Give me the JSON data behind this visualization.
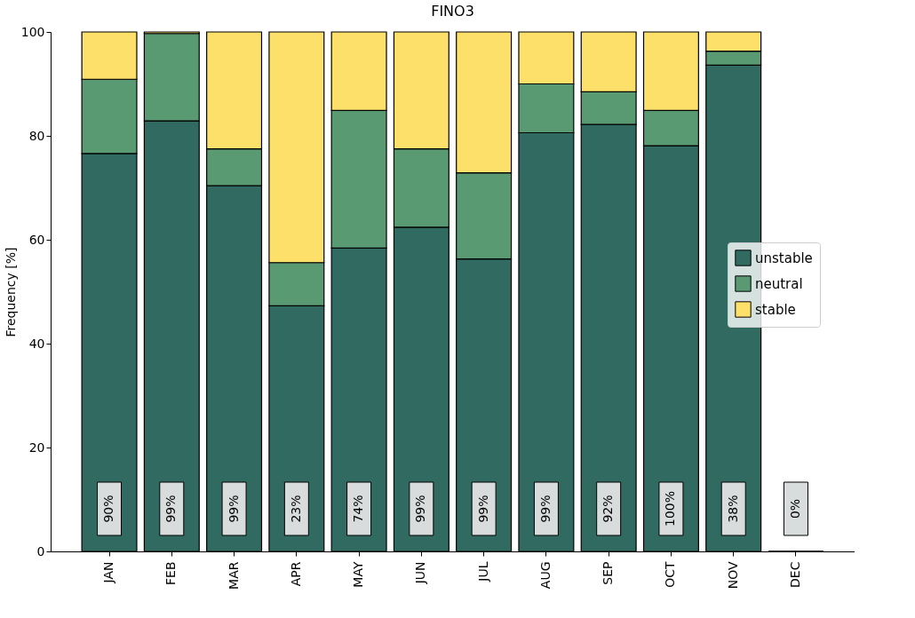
{
  "chart_data": {
    "type": "bar",
    "title": "FINO3",
    "ylabel": "Frequency [%]",
    "stacked": true,
    "categories": [
      "JAN",
      "FEB",
      "MAR",
      "APR",
      "MAY",
      "JUN",
      "JUL",
      "AUG",
      "SEP",
      "OCT",
      "NOV",
      "DEC"
    ],
    "series": [
      {
        "name": "unstable",
        "color": "#306a60",
        "values": [
          76.6,
          82.9,
          70.4,
          47.3,
          58.4,
          62.4,
          56.3,
          80.6,
          82.2,
          78.1,
          93.6,
          0
        ]
      },
      {
        "name": "neutral",
        "color": "#5a9a72",
        "values": [
          14.3,
          16.8,
          7.1,
          8.3,
          26.5,
          15.1,
          16.6,
          9.4,
          6.3,
          6.8,
          2.7,
          0
        ]
      },
      {
        "name": "stable",
        "color": "#fde06a",
        "values": [
          9.1,
          0.3,
          22.5,
          44.4,
          15.1,
          22.5,
          27.1,
          10.0,
          11.5,
          15.1,
          3.7,
          0
        ]
      }
    ],
    "ylim": [
      0,
      100
    ],
    "yticks": [
      0,
      20,
      40,
      60,
      80,
      100
    ],
    "grid": false,
    "legend": "right",
    "annotations": [
      "90%",
      "99%",
      "99%",
      "23%",
      "74%",
      "99%",
      "99%",
      "99%",
      "92%",
      "100%",
      "38%",
      "0%"
    ]
  }
}
